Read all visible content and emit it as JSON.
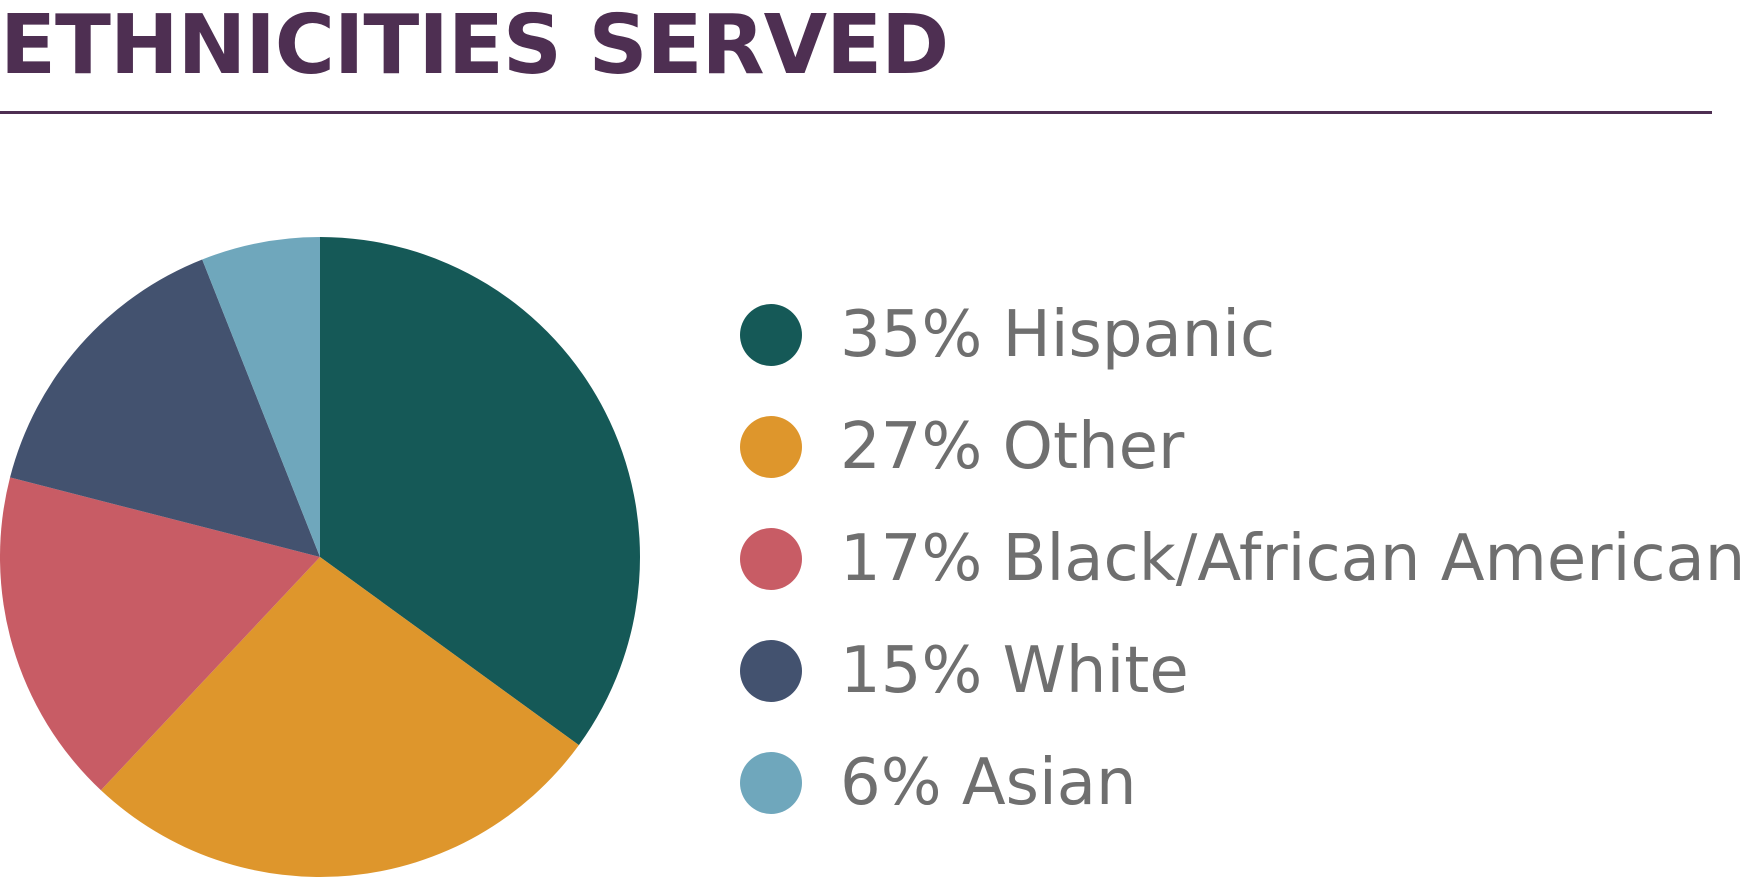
{
  "chart_data": {
    "type": "pie",
    "title": "ETHNICITIES SERVED",
    "slices": [
      {
        "label": "Hispanic",
        "value": 35,
        "display": "35% Hispanic",
        "color": "#155957"
      },
      {
        "label": "Other",
        "value": 27,
        "display": "27% Other",
        "color": "#de962c"
      },
      {
        "label": "Black/African American",
        "value": 17,
        "display": "17% Black/African American",
        "color": "#c85c65"
      },
      {
        "label": "White",
        "value": 15,
        "display": "15% White",
        "color": "#43526f"
      },
      {
        "label": "Asian",
        "value": 6,
        "display": "6% Asian",
        "color": "#6fa7bc"
      }
    ],
    "legend_placement": "right",
    "start_angle": "top",
    "direction": "clockwise"
  },
  "colors": {
    "title": "#4e2f52",
    "rule": "#4e2f52",
    "legend_text": "#6f6f6f"
  }
}
